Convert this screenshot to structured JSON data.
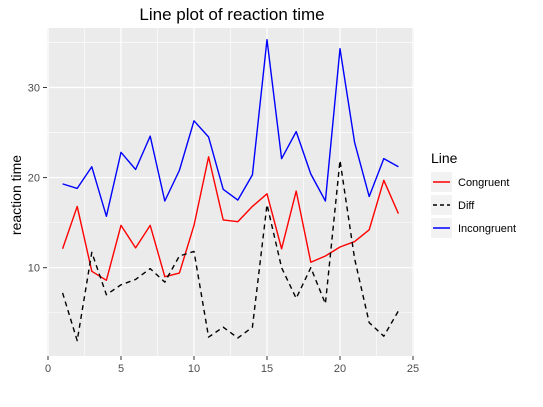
{
  "chart_data": {
    "type": "line",
    "title": "Line plot of reaction time",
    "xlabel": "",
    "ylabel": "reaction time",
    "xlim": [
      0,
      25
    ],
    "ylim": [
      0.2,
      36.6
    ],
    "x_ticks": [
      0,
      5,
      10,
      15,
      20,
      25
    ],
    "y_ticks": [
      10,
      20,
      30
    ],
    "grid": true,
    "legend_title": "Line",
    "legend_position": "right",
    "x": [
      1,
      2,
      3,
      4,
      5,
      6,
      7,
      8,
      9,
      10,
      11,
      12,
      13,
      14,
      15,
      16,
      17,
      18,
      19,
      20,
      21,
      22,
      23,
      24
    ],
    "series": [
      {
        "name": "Congruent",
        "color": "#ff0000",
        "linestyle": "solid",
        "values": [
          12.1,
          16.8,
          9.6,
          8.6,
          14.7,
          12.2,
          14.7,
          9.0,
          9.4,
          14.7,
          22.3,
          15.3,
          15.1,
          16.8,
          18.2,
          12.1,
          18.5,
          10.6,
          11.3,
          12.3,
          12.9,
          14.2,
          19.7,
          16.0
        ]
      },
      {
        "name": "Diff",
        "color": "#000000",
        "linestyle": "dashed",
        "values": [
          7.2,
          1.9,
          11.7,
          7.0,
          8.1,
          8.7,
          9.9,
          8.4,
          11.3,
          11.8,
          2.3,
          3.4,
          2.2,
          3.4,
          17.0,
          10.0,
          6.6,
          10.0,
          6.0,
          21.9,
          11.0,
          3.9,
          2.4,
          5.2
        ]
      },
      {
        "name": "Incongruent",
        "color": "#0000ff",
        "linestyle": "solid",
        "values": [
          19.3,
          18.8,
          21.2,
          15.7,
          22.8,
          20.9,
          24.6,
          17.4,
          20.8,
          26.3,
          24.5,
          18.7,
          17.5,
          20.3,
          35.3,
          22.1,
          25.1,
          20.4,
          17.4,
          34.3,
          23.9,
          17.9,
          22.1,
          21.2
        ]
      }
    ]
  }
}
